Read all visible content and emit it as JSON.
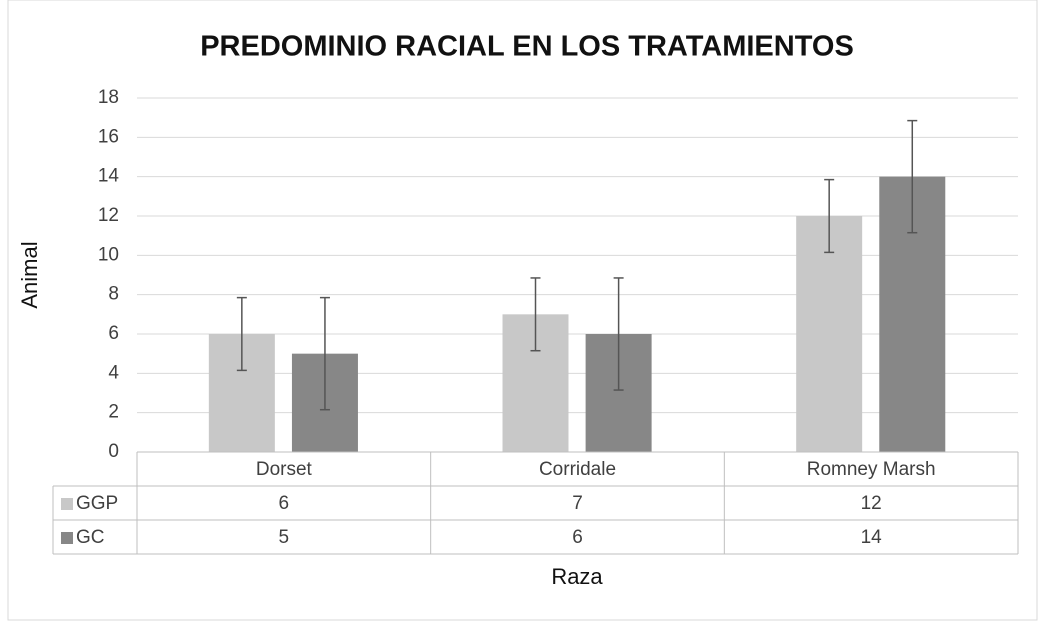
{
  "chart_data": {
    "type": "bar",
    "title": "PREDOMINIO RACIAL EN LOS TRATAMIENTOS",
    "x_label": "Raza",
    "y_label": "Animal",
    "categories": [
      "Dorset",
      "Corridale",
      "Romney Marsh"
    ],
    "series": [
      {
        "name": "GGP",
        "color": "#c8c8c8",
        "values": [
          6,
          7,
          12
        ],
        "errors": [
          1.85,
          1.85,
          1.85
        ]
      },
      {
        "name": "GC",
        "color": "#878787",
        "values": [
          5,
          6,
          14
        ],
        "errors": [
          2.85,
          2.85,
          2.85
        ]
      }
    ],
    "ylim": [
      0,
      18
    ],
    "yticks": [
      0,
      2,
      4,
      6,
      8,
      10,
      12,
      14,
      16,
      18
    ],
    "grid": true,
    "data_table": true
  }
}
